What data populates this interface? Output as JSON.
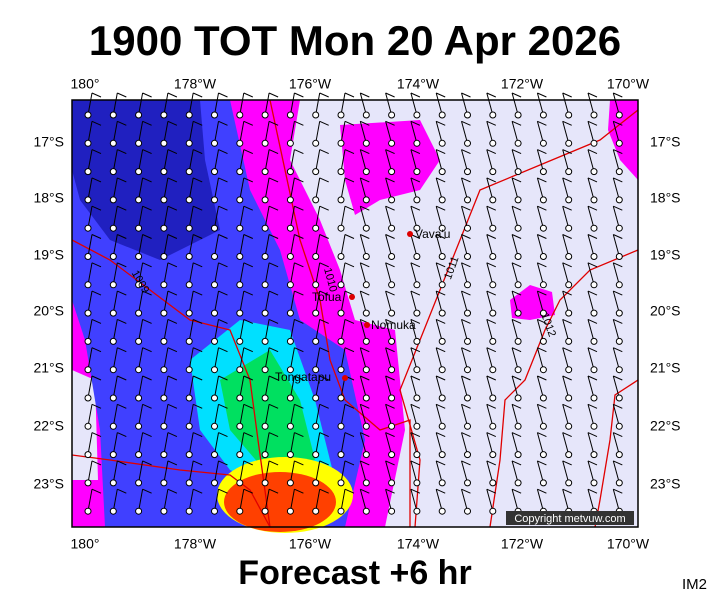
{
  "header": {
    "title": "1900 TOT Mon 20 Apr 2026"
  },
  "map": {
    "lon_labels": [
      "180°",
      "178°W",
      "176°W",
      "174°W",
      "172°W",
      "170°W"
    ],
    "lat_labels": [
      "17°S",
      "18°S",
      "19°S",
      "20°S",
      "21°S",
      "22°S",
      "23°S"
    ],
    "places": [
      "Vava'u",
      "Tofua",
      "Nomuka",
      "Tongatapu"
    ],
    "isobars": [
      "1009",
      "1010",
      "1011",
      "1012"
    ],
    "copyright": "Copyright metvuw.com"
  },
  "footer": {
    "forecast": "Forecast +6 hr",
    "id": "IM2"
  }
}
